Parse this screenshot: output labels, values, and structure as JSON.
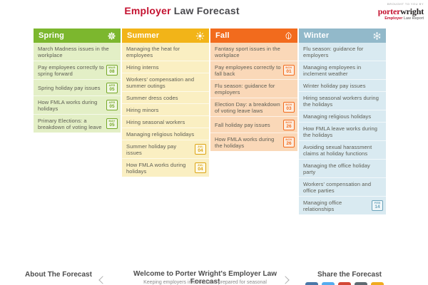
{
  "header": {
    "title_accent": "Employer",
    "title_rest": " Law Forecast",
    "logo": {
      "tagline": "BROUGHT TO YOU BY",
      "brand_accent": "porter",
      "brand_rest": "wright",
      "subbrand_accent": "Employer",
      "subbrand_rest": " Law Report"
    }
  },
  "seasons": [
    {
      "name": "Spring",
      "icon": "flower-icon",
      "colors": {
        "header": "#7cb72e",
        "bg": "#e3efc6",
        "badge": "#76a82a"
      },
      "items": [
        {
          "label": "March Madness issues in the workplace"
        },
        {
          "label": "Pay employees correctly to spring forward",
          "date_month": "MAR",
          "date_day": "08"
        },
        {
          "label": "Spring holiday pay issues",
          "date_month": "APR",
          "date_day": "05"
        },
        {
          "label": "How FMLA works during holidays",
          "date_month": "APR",
          "date_day": "05"
        },
        {
          "label": "Primary Elections: a breakdown of voting leave",
          "date_month": "MAY",
          "date_day": "05"
        }
      ]
    },
    {
      "name": "Summer",
      "icon": "sun-icon",
      "colors": {
        "header": "#f2b418",
        "bg": "#faefc2",
        "badge": "#dca414"
      },
      "items": [
        {
          "label": "Managing the heat for employees"
        },
        {
          "label": "Hiring interns"
        },
        {
          "label": "Workers' compensation and summer outings"
        },
        {
          "label": "Summer dress codes"
        },
        {
          "label": "Hiring minors"
        },
        {
          "label": "Hiring seasonal workers"
        },
        {
          "label": "Managing religious holidays"
        },
        {
          "label": "Summer holiday pay issues",
          "date_month": "JUL",
          "date_day": "04"
        },
        {
          "label": "How FMLA works during holidays",
          "date_month": "JUL",
          "date_day": "04"
        }
      ]
    },
    {
      "name": "Fall",
      "icon": "leaf-icon",
      "colors": {
        "header": "#f26b1d",
        "bg": "#fad8b8",
        "badge": "#f26b1d"
      },
      "items": [
        {
          "label": "Fantasy sport issues in the workplace"
        },
        {
          "label": "Pay employees correctly to fall back",
          "date_month": "NOV",
          "date_day": "01"
        },
        {
          "label": "Flu season: guidance for employers"
        },
        {
          "label": "Election Day: a breakdown of voting leave laws",
          "date_month": "NOV",
          "date_day": "03"
        },
        {
          "label": "Fall holiday pay issues",
          "date_month": "NOV",
          "date_day": "26"
        },
        {
          "label": "How FMLA works during the holidays",
          "date_month": "NOV",
          "date_day": "26"
        }
      ]
    },
    {
      "name": "Winter",
      "icon": "snowflake-icon",
      "colors": {
        "header": "#92b9ca",
        "bg": "#d9eaf1",
        "badge": "#6ba3ba"
      },
      "items": [
        {
          "label": "Flu season: guidance for employers"
        },
        {
          "label": "Managing employees in inclement weather"
        },
        {
          "label": "Winter holiday pay issues"
        },
        {
          "label": "Hiring seasonal workers during the holidays"
        },
        {
          "label": "Managing religious holidays"
        },
        {
          "label": "How FMLA leave works during the holidays"
        },
        {
          "label": "Avoiding sexual harassment claims at holiday functions"
        },
        {
          "label": "Managing the office holiday party"
        },
        {
          "label": "Workers' compensation and office parties"
        },
        {
          "label": "Managing office relationships",
          "date_month": "FEB",
          "date_day": "14"
        }
      ]
    }
  ],
  "footer": {
    "about_label": "About The Forecast",
    "carousel": {
      "heading": "Welcome to Porter Wright's Employer Law Forecast",
      "subtext": "Keeping employers informed and prepared for seasonal"
    },
    "share": {
      "label": "Share the Forecast",
      "icons": [
        {
          "name": "facebook-icon",
          "color": "#4a78a8"
        },
        {
          "name": "twitter-icon",
          "color": "#55acee"
        },
        {
          "name": "googleplus-icon",
          "color": "#d34836"
        },
        {
          "name": "email-icon",
          "color": "#5e6a71"
        },
        {
          "name": "rss-icon",
          "color": "#f0ab1f"
        }
      ]
    }
  }
}
